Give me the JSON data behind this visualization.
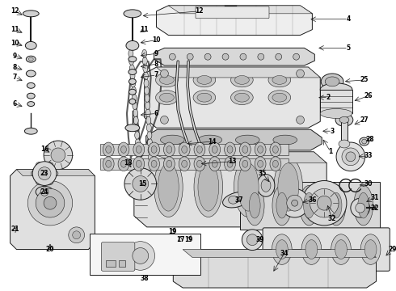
{
  "bg_color": "#ffffff",
  "fig_width": 4.9,
  "fig_height": 3.6,
  "dpi": 100,
  "lc": "#1a1a1a",
  "lw_main": 0.7,
  "lw_thin": 0.4,
  "fc_part": "#f0f0f0",
  "fc_dark": "#d8d8d8",
  "fc_white": "#ffffff",
  "label_fs": 5.5,
  "label_color": "#000000"
}
